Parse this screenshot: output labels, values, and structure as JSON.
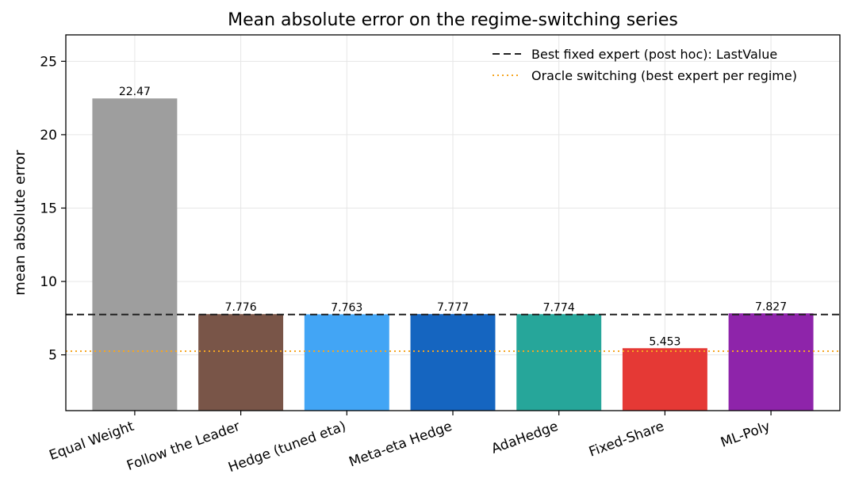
{
  "chart_data": {
    "type": "bar",
    "title": "Mean absolute error on the regime-switching series",
    "xlabel": "",
    "ylabel": "mean absolute error",
    "ylim": [
      1.2,
      26.8
    ],
    "yticks": [
      5,
      10,
      15,
      20,
      25
    ],
    "grid": true,
    "legend_position": "top-right",
    "categories": [
      "Equal Weight",
      "Follow the Leader",
      "Hedge (tuned eta)",
      "Meta-eta Hedge",
      "AdaHedge",
      "Fixed-Share",
      "ML-Poly"
    ],
    "values": [
      22.47,
      7.776,
      7.763,
      7.777,
      7.774,
      5.453,
      7.827
    ],
    "value_labels": [
      "22.47",
      "7.776",
      "7.763",
      "7.777",
      "7.774",
      "5.453",
      "7.827"
    ],
    "colors": [
      "#9e9e9e",
      "#795548",
      "#42a5f5",
      "#1565c0",
      "#26a69a",
      "#e53935",
      "#8e24aa"
    ],
    "reference_lines": [
      {
        "label": "Best fixed expert (post hoc): LastValue",
        "value": 7.75,
        "style": "dashed",
        "color": "#222222"
      },
      {
        "label": "Oracle switching (best expert per regime)",
        "value": 5.25,
        "style": "dotted",
        "color": "#f5a623"
      }
    ]
  }
}
